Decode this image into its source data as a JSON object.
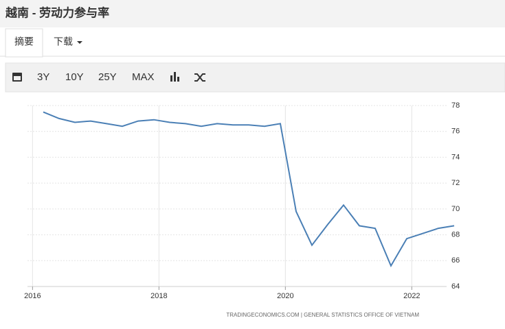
{
  "header": {
    "title": "越南 - 劳动力参与率"
  },
  "tabs": [
    "摘要",
    "下载"
  ],
  "toolbar": [
    "3Y",
    "10Y",
    "25Y",
    "MAX"
  ],
  "chart_data": {
    "type": "line",
    "x": [
      2016.17,
      2016.42,
      2016.67,
      2016.92,
      2017.17,
      2017.42,
      2017.67,
      2017.92,
      2018.17,
      2018.42,
      2018.67,
      2018.92,
      2019.17,
      2019.42,
      2019.67,
      2019.92,
      2020.17,
      2020.42,
      2020.67,
      2020.92,
      2021.17,
      2021.42,
      2021.67,
      2021.92,
      2022.17,
      2022.42,
      2022.67
    ],
    "values": [
      77.5,
      77.0,
      76.7,
      76.8,
      76.6,
      76.4,
      76.8,
      76.9,
      76.7,
      76.6,
      76.4,
      76.6,
      76.5,
      76.5,
      76.4,
      76.6,
      69.8,
      67.2,
      68.8,
      70.3,
      68.7,
      68.5,
      65.6,
      67.7,
      68.1,
      68.5,
      68.7
    ],
    "color": "#4a7fb5",
    "xlim": [
      2015.92,
      2022.79
    ],
    "xticks": [
      2016,
      2018,
      2020,
      2022
    ],
    "ylim": [
      64,
      78
    ],
    "yticks": [
      64,
      66,
      68,
      70,
      72,
      74,
      76,
      78
    ],
    "grid": true,
    "source": "TRADINGECONOMICS.COM | GENERAL STATISTICS OFFICE OF VIETNAM"
  }
}
